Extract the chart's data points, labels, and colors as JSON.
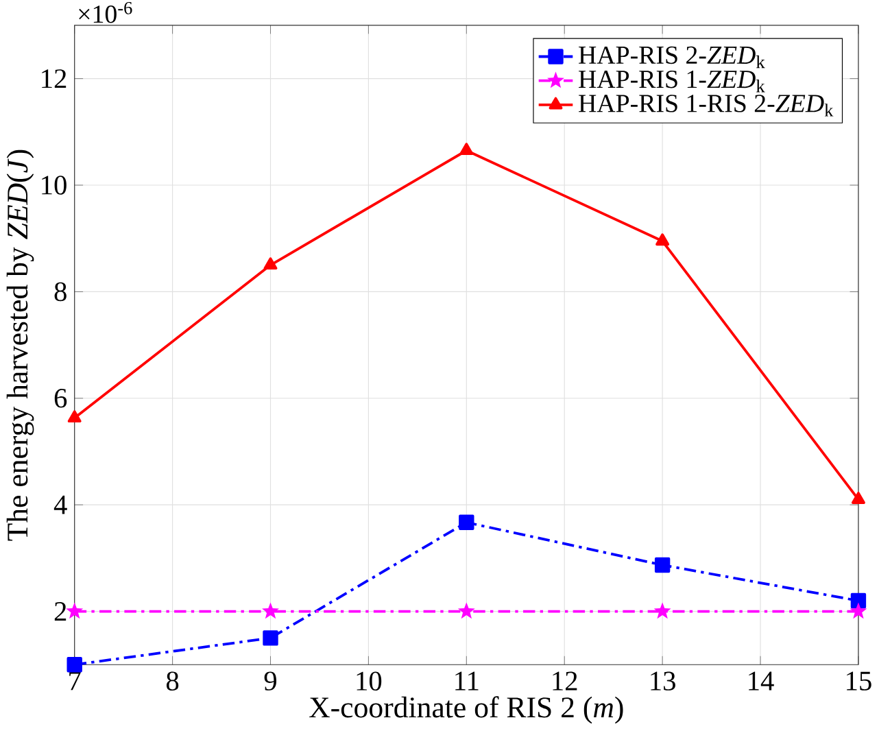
{
  "chart_data": {
    "type": "line",
    "xlabel": "X-coordinate of RIS 2 (*m*)",
    "ylabel": "The energy harvested by *ZED*(*J*)",
    "annotations": [
      "×10$^{-6}$"
    ],
    "x": [
      7,
      9,
      11,
      13,
      15
    ],
    "series": [
      {
        "name": "HAP-RIS 2-*ZED*$_{k}$",
        "color": "#0000ff",
        "marker": "square",
        "line_style": "dashdot",
        "values": [
          1.0,
          1.5,
          3.67,
          2.87,
          2.2
        ]
      },
      {
        "name": "HAP-RIS 1-*ZED*$_{k}$",
        "color": "#ff00ff",
        "marker": "star",
        "line_style": "dashdot",
        "values": [
          2.0,
          2.0,
          2.0,
          2.0,
          2.0
        ]
      },
      {
        "name": "HAP-RIS 1-RIS 2-*ZED*$_{k}$",
        "color": "#ff0000",
        "marker": "triangle",
        "line_style": "solid",
        "values": [
          5.63,
          8.5,
          10.65,
          8.95,
          4.1
        ]
      }
    ],
    "xlim": [
      7,
      15
    ],
    "xticks": [
      7,
      8,
      9,
      10,
      11,
      12,
      13,
      14,
      15
    ],
    "ylim": [
      1,
      13
    ],
    "yticks": [
      2,
      4,
      6,
      8,
      10,
      12
    ],
    "grid": true,
    "legend": "top right"
  }
}
